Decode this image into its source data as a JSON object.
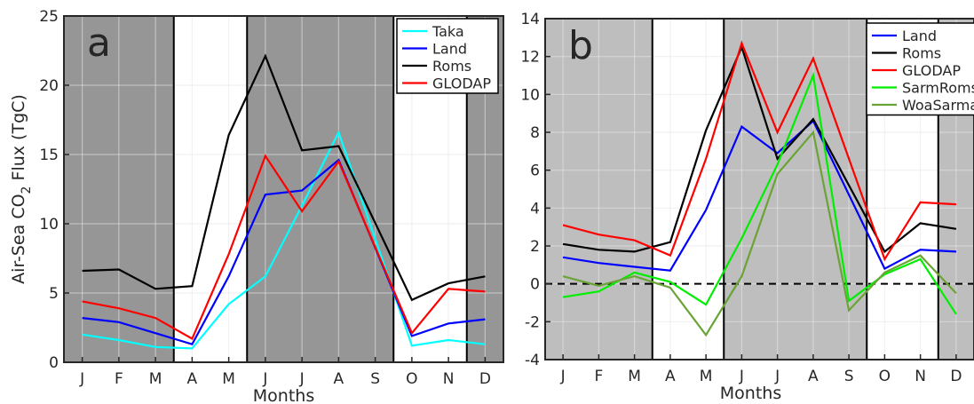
{
  "chart_data": [
    {
      "type": "line",
      "panel_label": "a",
      "xlabel": "Months",
      "ylabel_main": "Air-Sea CO",
      "ylabel_sub": "2",
      "ylabel_tail": " Flux (TgC)",
      "categories": [
        "J",
        "F",
        "M",
        "A",
        "M",
        "J",
        "J",
        "A",
        "S",
        "O",
        "N",
        "D"
      ],
      "ylim": [
        0,
        25
      ],
      "yticks": [
        "0",
        "5",
        "10",
        "15",
        "20",
        "25"
      ],
      "grid": true,
      "legend_position": "top-right",
      "shaded_month_ranges": [
        [
          0.5,
          3.5
        ],
        [
          5.5,
          9.5
        ],
        [
          11.5,
          12.5
        ]
      ],
      "shade_color": "#969696",
      "month_boundaries": [
        3.5,
        5.5,
        9.5,
        11.5
      ],
      "series": [
        {
          "name": "Taka",
          "color": "#00ffff",
          "values": [
            2.0,
            1.6,
            1.1,
            1.0,
            4.2,
            6.2,
            11.3,
            16.6,
            null,
            1.2,
            1.6,
            1.3
          ]
        },
        {
          "name": "Land",
          "color": "#0000ff",
          "values": [
            3.2,
            2.9,
            2.1,
            1.3,
            6.2,
            12.1,
            12.4,
            14.6,
            null,
            1.9,
            2.8,
            3.1
          ]
        },
        {
          "name": "Roms",
          "color": "#000000",
          "values": [
            6.6,
            6.7,
            5.3,
            5.5,
            16.4,
            22.1,
            15.3,
            15.6,
            null,
            4.5,
            5.7,
            6.2
          ]
        },
        {
          "name": "GLODAP",
          "color": "#ff0000",
          "values": [
            4.4,
            3.9,
            3.2,
            1.7,
            7.8,
            14.9,
            10.9,
            14.5,
            null,
            2.1,
            5.3,
            5.1
          ]
        }
      ]
    },
    {
      "type": "line",
      "panel_label": "b",
      "xlabel": "Months",
      "categories": [
        "J",
        "F",
        "M",
        "A",
        "M",
        "J",
        "J",
        "A",
        "S",
        "O",
        "N",
        "D"
      ],
      "ylim": [
        -4,
        14
      ],
      "yticks": [
        "-4",
        "-2",
        "0",
        "2",
        "4",
        "6",
        "8",
        "10",
        "12",
        "14"
      ],
      "grid": true,
      "legend_position": "top-right",
      "zero_line": true,
      "shaded_month_ranges": [
        [
          0.5,
          3.5
        ],
        [
          5.5,
          9.5
        ],
        [
          11.5,
          12.5
        ]
      ],
      "shade_color": "#bebebe",
      "month_boundaries": [
        3.5,
        5.5,
        9.5,
        11.5
      ],
      "series": [
        {
          "name": "Land",
          "color": "#0000ff",
          "values": [
            1.4,
            1.1,
            0.9,
            0.7,
            3.9,
            8.3,
            6.9,
            8.6,
            null,
            0.8,
            1.8,
            1.7
          ]
        },
        {
          "name": "Roms",
          "color": "#000000",
          "values": [
            2.1,
            1.8,
            1.7,
            2.2,
            8.1,
            12.5,
            6.6,
            8.7,
            null,
            1.7,
            3.2,
            2.9
          ]
        },
        {
          "name": "GLODAP",
          "color": "#ff0000",
          "values": [
            3.1,
            2.6,
            2.3,
            1.5,
            6.6,
            12.7,
            8.0,
            11.9,
            null,
            1.3,
            4.3,
            4.2
          ]
        },
        {
          "name": "SarmRoms",
          "color": "#00ee00",
          "values": [
            -0.7,
            -0.4,
            0.6,
            0.1,
            -1.1,
            2.4,
            6.3,
            11.0,
            -0.9,
            0.5,
            1.3,
            -1.6
          ]
        },
        {
          "name": "WoaSarma",
          "color": "#6aa336",
          "values": [
            0.4,
            -0.1,
            0.4,
            -0.2,
            -2.7,
            0.4,
            5.8,
            8.0,
            -1.4,
            0.6,
            1.5,
            -0.5
          ]
        }
      ]
    }
  ]
}
